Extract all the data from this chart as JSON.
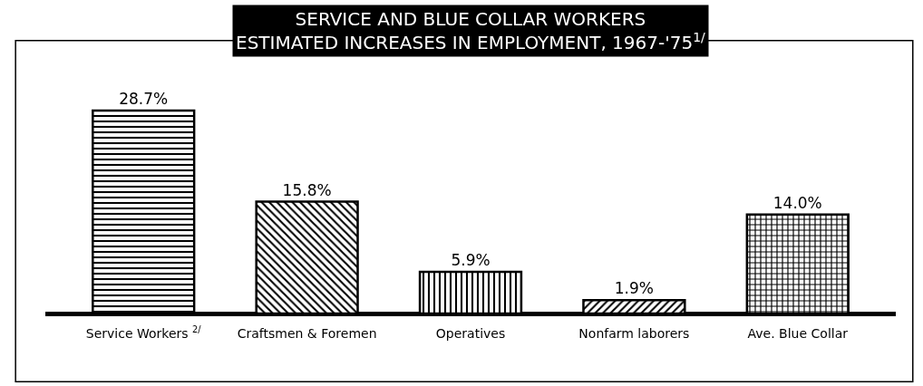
{
  "chart_data": {
    "type": "bar",
    "title": "SERVICE AND BLUE COLLAR WORKERS\nESTIMATED INCREASES IN EMPLOYMENT, 1967-'75$^{1/}$",
    "categories": [
      "Service Workers $^{2/}$",
      "Craftsmen & Foremen",
      "Operatives",
      "Nonfarm laborers",
      "Ave. Blue Collar"
    ],
    "values": [
      28.7,
      15.8,
      5.9,
      1.9,
      14.0
    ],
    "value_labels": [
      "28.7%",
      "15.8%",
      "5.9%",
      "1.9%",
      "14.0%"
    ],
    "color": "#000000",
    "grid": false
  }
}
